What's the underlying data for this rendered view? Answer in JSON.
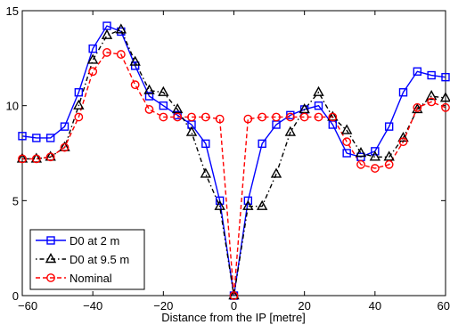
{
  "chart_data": {
    "type": "line",
    "title": "",
    "xlabel": "Distance from the IP [metre]",
    "ylabel": "",
    "xlim": [
      -60,
      60
    ],
    "ylim": [
      0,
      15
    ],
    "xticks": [
      -60,
      -40,
      -20,
      0,
      20,
      40,
      60
    ],
    "yticks": [
      0,
      5,
      10,
      15
    ],
    "xtick_labels": [
      "−60",
      "−40",
      "−20",
      "0",
      "20",
      "40",
      "60"
    ],
    "ytick_labels": [
      "0",
      "5",
      "10",
      "15"
    ],
    "grid": false,
    "legend_position": "bottom-left",
    "series": [
      {
        "name": "D0 at 2 m",
        "color": "#0000ff",
        "line_style": "solid",
        "marker": "square",
        "x": [
          -60,
          -56,
          -52,
          -48,
          -44,
          -40,
          -36,
          -32,
          -28,
          -24,
          -20,
          -16,
          -12,
          -8,
          -4,
          0,
          4,
          8,
          12,
          16,
          20,
          24,
          28,
          32,
          36,
          40,
          44,
          48,
          52,
          56,
          60
        ],
        "y": [
          8.4,
          8.3,
          8.3,
          8.9,
          10.7,
          13.0,
          14.2,
          13.9,
          12.1,
          10.5,
          10.0,
          9.5,
          9.0,
          8.0,
          5.0,
          0.0,
          5.0,
          8.0,
          9.0,
          9.5,
          9.8,
          10.0,
          9.0,
          7.5,
          7.3,
          7.6,
          8.9,
          10.7,
          11.8,
          11.6,
          11.5
        ]
      },
      {
        "name": "D0 at 9.5 m",
        "color": "#000000",
        "line_style": "dash-dot",
        "marker": "triangle",
        "x": [
          -60,
          -56,
          -52,
          -48,
          -44,
          -40,
          -36,
          -32,
          -28,
          -24,
          -20,
          -16,
          -12,
          -8,
          -4,
          0,
          4,
          8,
          12,
          16,
          20,
          24,
          28,
          32,
          36,
          40,
          44,
          48,
          52,
          56,
          60
        ],
        "y": [
          7.2,
          7.2,
          7.3,
          7.8,
          10.0,
          12.4,
          13.7,
          14.0,
          12.3,
          10.8,
          10.7,
          9.8,
          8.6,
          6.4,
          4.7,
          0.0,
          4.7,
          4.7,
          6.4,
          8.6,
          9.8,
          10.7,
          9.4,
          8.7,
          7.5,
          7.3,
          7.3,
          8.3,
          9.8,
          10.5,
          10.4
        ]
      },
      {
        "name": "Nominal",
        "color": "#ff0000",
        "line_style": "dashed",
        "marker": "circle",
        "x": [
          -60,
          -56,
          -52,
          -48,
          -44,
          -40,
          -36,
          -32,
          -28,
          -24,
          -20,
          -16,
          -12,
          -8,
          -4,
          0,
          4,
          8,
          12,
          16,
          20,
          24,
          28,
          32,
          36,
          40,
          44,
          48,
          52,
          56,
          60
        ],
        "y": [
          7.2,
          7.2,
          7.3,
          7.8,
          9.4,
          11.8,
          12.8,
          12.7,
          11.1,
          9.8,
          9.4,
          9.4,
          9.4,
          9.4,
          9.3,
          0.0,
          9.3,
          9.4,
          9.4,
          9.4,
          9.4,
          9.4,
          9.4,
          8.1,
          6.9,
          6.7,
          6.9,
          8.1,
          9.9,
          10.2,
          9.9
        ]
      }
    ]
  }
}
